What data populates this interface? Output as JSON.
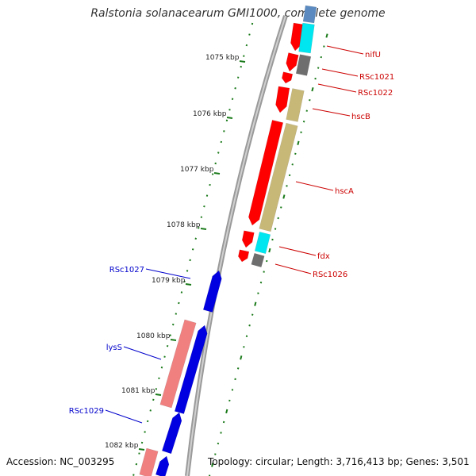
{
  "title": "Ralstonia solanacearum GMI1000, complete genome",
  "footer": {
    "accession": "Accession: NC_003295",
    "topology": "Topology: circular; Length: 3,716,413 bp; Genes: 3,501"
  },
  "colors": {
    "backbone": "#8a8a8a",
    "tick": "#1a7a1a",
    "forward_label": "#cc0000",
    "reverse_label": "#0000cc",
    "red": "#ff0000",
    "cyan": "#00e6f0",
    "gray": "#6e6e6e",
    "tan": "#c8b878",
    "blue": "#0000e0",
    "pink": "#f08080",
    "steel": "#5a8ac0"
  },
  "scale_labels": [
    "1075 kbp",
    "1076 kbp",
    "1077 kbp",
    "1078 kbp",
    "1079 kbp",
    "1080 kbp",
    "1081 kbp",
    "1082 kbp"
  ],
  "forward_gene_labels": [
    "nifU",
    "RSc1021",
    "RSc1022",
    "hscB",
    "hscA",
    "fdx",
    "RSc1026"
  ],
  "reverse_gene_labels": [
    "RSc1027",
    "lysS",
    "RSc1029"
  ]
}
